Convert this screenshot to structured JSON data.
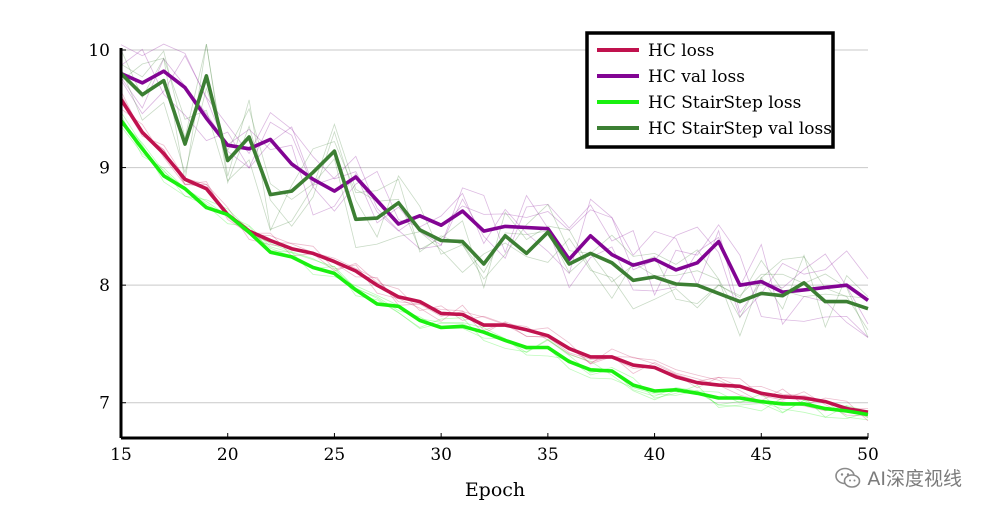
{
  "chart_data": {
    "type": "line",
    "title": "",
    "xlabel": "Epoch",
    "ylabel": "",
    "xlim": [
      15,
      50
    ],
    "ylim": [
      6.7,
      10
    ],
    "xticks": [
      15,
      20,
      25,
      30,
      35,
      40,
      45,
      50
    ],
    "yticks": [
      7,
      8,
      9,
      10
    ],
    "grid": "horizontal",
    "legend_position": "top-right",
    "x": [
      15,
      16,
      17,
      18,
      19,
      20,
      21,
      22,
      23,
      24,
      25,
      26,
      27,
      28,
      29,
      30,
      31,
      32,
      33,
      34,
      35,
      36,
      37,
      38,
      39,
      40,
      41,
      42,
      43,
      44,
      45,
      46,
      47,
      48,
      49,
      50
    ],
    "series": [
      {
        "name": "HC loss",
        "color": "#c0124e",
        "values": [
          9.58,
          9.3,
          9.12,
          8.9,
          8.82,
          8.6,
          8.46,
          8.38,
          8.31,
          8.27,
          8.2,
          8.12,
          8.0,
          7.9,
          7.86,
          7.76,
          7.75,
          7.66,
          7.66,
          7.62,
          7.57,
          7.46,
          7.39,
          7.39,
          7.32,
          7.3,
          7.22,
          7.17,
          7.15,
          7.14,
          7.08,
          7.05,
          7.04,
          7.01,
          6.95,
          6.92
        ]
      },
      {
        "name": "HC val loss",
        "color": "#820493",
        "values": [
          9.8,
          9.72,
          9.82,
          9.68,
          9.42,
          9.19,
          9.16,
          9.24,
          9.03,
          8.9,
          8.8,
          8.92,
          8.72,
          8.52,
          8.59,
          8.51,
          8.63,
          8.46,
          8.5,
          8.49,
          8.48,
          8.22,
          8.42,
          8.26,
          8.17,
          8.22,
          8.13,
          8.19,
          8.37,
          8.0,
          8.03,
          7.94,
          7.96,
          7.98,
          8.0,
          7.87
        ]
      },
      {
        "name": "HC StairStep loss",
        "color": "#19f00f",
        "values": [
          9.4,
          9.16,
          8.93,
          8.82,
          8.66,
          8.6,
          8.45,
          8.28,
          8.24,
          8.15,
          8.1,
          7.96,
          7.84,
          7.82,
          7.7,
          7.64,
          7.65,
          7.6,
          7.53,
          7.47,
          7.47,
          7.35,
          7.28,
          7.27,
          7.15,
          7.1,
          7.11,
          7.08,
          7.04,
          7.04,
          7.01,
          6.99,
          6.99,
          6.95,
          6.93,
          6.9
        ]
      },
      {
        "name": "HC StairStep val loss",
        "color": "#3c7f33",
        "values": [
          9.8,
          9.62,
          9.74,
          9.2,
          9.78,
          9.06,
          9.26,
          8.77,
          8.8,
          8.96,
          9.14,
          8.56,
          8.57,
          8.7,
          8.47,
          8.38,
          8.37,
          8.18,
          8.42,
          8.27,
          8.45,
          8.18,
          8.27,
          8.19,
          8.04,
          8.07,
          8.01,
          8.0,
          7.93,
          7.86,
          7.93,
          7.91,
          8.02,
          7.86,
          7.86,
          7.8
        ]
      }
    ]
  },
  "watermark": {
    "text": "AI深度视线",
    "icon": "wechat-icon"
  }
}
